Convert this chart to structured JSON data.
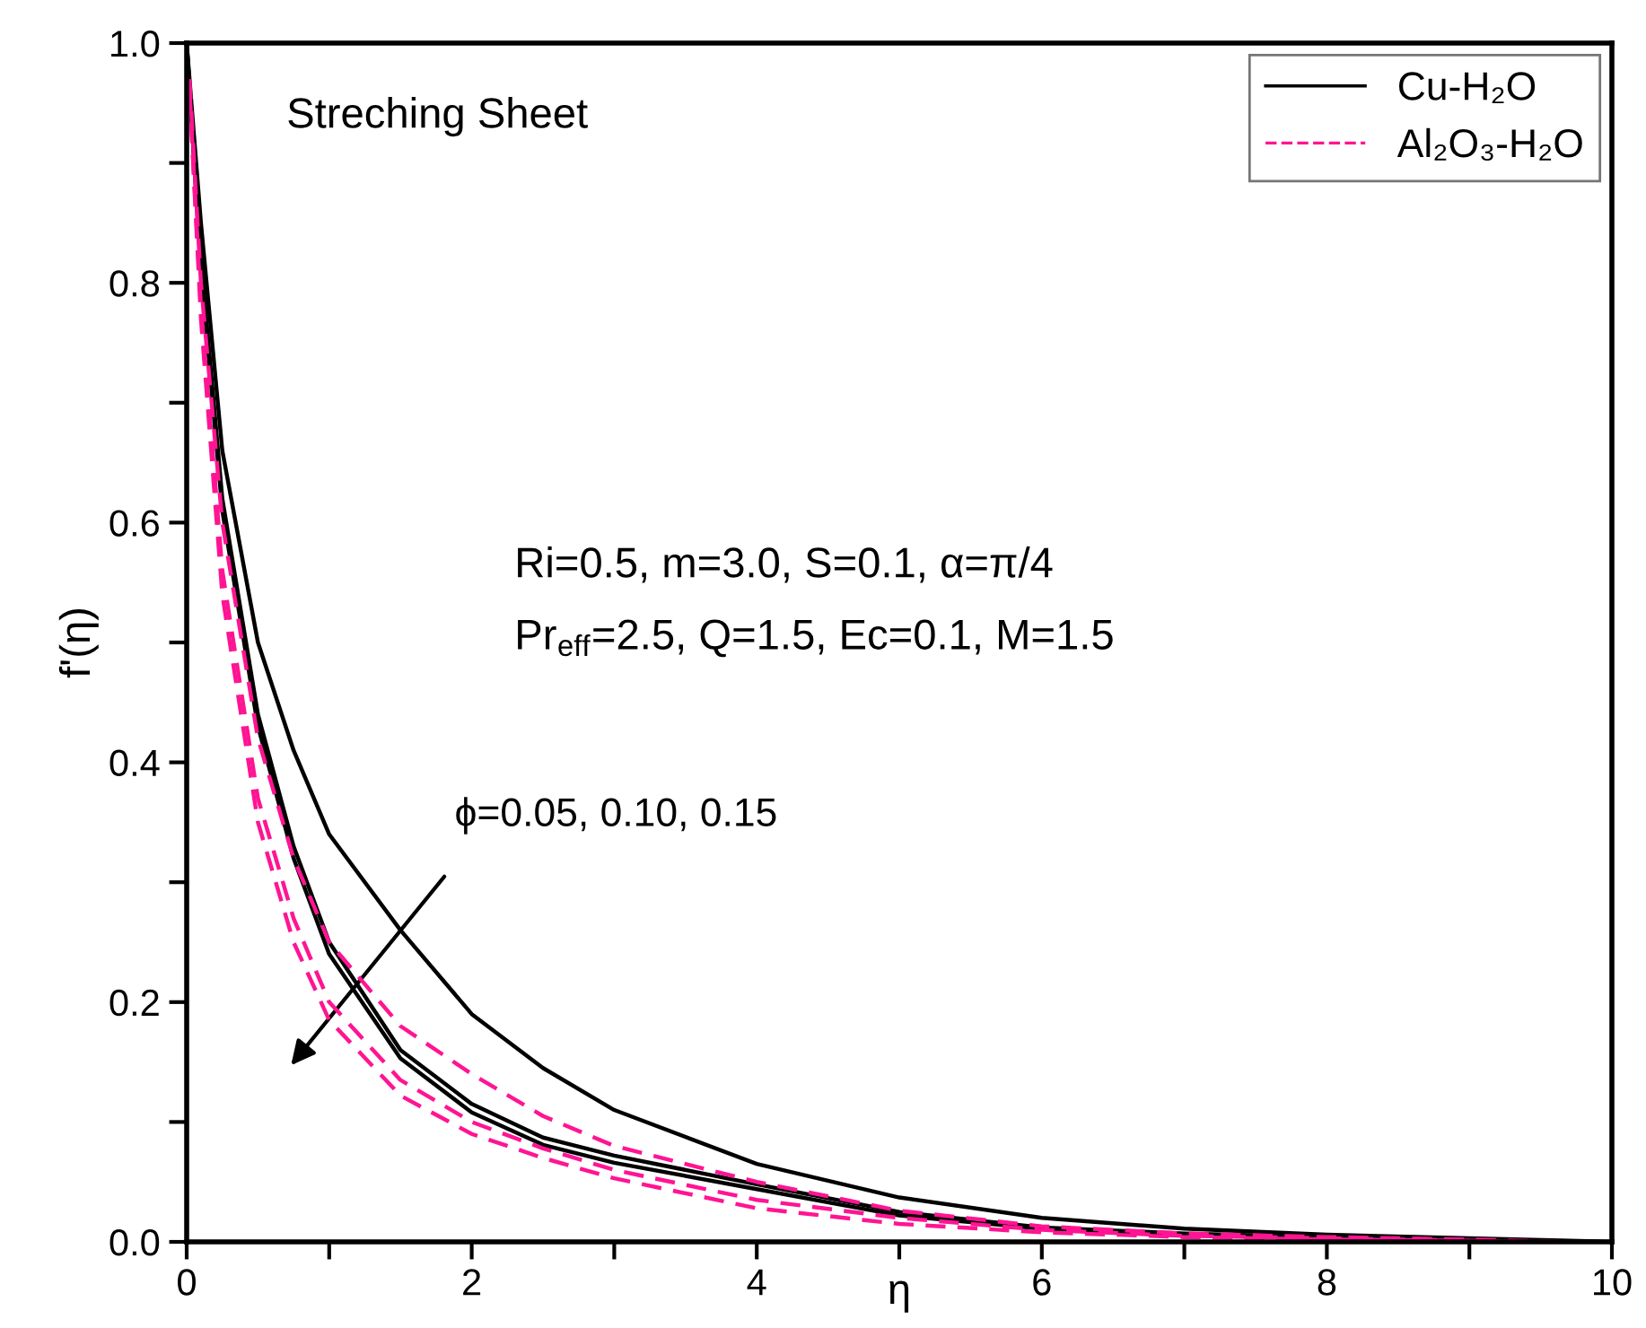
{
  "chart_data": {
    "type": "line",
    "xlabel": "η",
    "ylabel": "f'(η)",
    "xlim": [
      0,
      10
    ],
    "ylim": [
      0,
      1.0
    ],
    "xticks": [
      0,
      {
        "value": 1,
        "label": null
      },
      2,
      {
        "value": 3,
        "label": null
      },
      4,
      {
        "value": 5,
        "label": null
      },
      6,
      {
        "value": 7,
        "label": null
      },
      8,
      {
        "value": 9,
        "label": null
      },
      10
    ],
    "yticks": [
      {
        "value": 0,
        "label": "0.0"
      },
      {
        "value": 0.1,
        "label": null
      },
      0.2,
      {
        "value": 0.3,
        "label": null
      },
      0.4,
      {
        "value": 0.5,
        "label": null
      },
      0.6,
      {
        "value": 0.7,
        "label": null
      },
      0.8,
      {
        "value": 0.9,
        "label": null
      },
      {
        "value": 1.0,
        "label": "1.0"
      }
    ],
    "grid": false,
    "legend": "top right",
    "marker": "none",
    "x": [
      0,
      0.1,
      0.25,
      0.5,
      0.75,
      1,
      1.5,
      2,
      2.5,
      3,
      4,
      5,
      6,
      7,
      8,
      9,
      10
    ],
    "series": [
      {
        "name": "Cu-H₂O",
        "color": "#000000",
        "line_style": "solid",
        "values": [
          1,
          0.85,
          0.66,
          0.5,
          0.41,
          0.34,
          0.26,
          0.19,
          0.145,
          0.11,
          0.065,
          0.037,
          0.02,
          0.011,
          0.006,
          0.003,
          0
        ]
      },
      {
        "color": "#000000",
        "line_style": "solid",
        "x": [
          0,
          0.1,
          0.25,
          0.5,
          0.75,
          1,
          1.5,
          2,
          2.5,
          3,
          4,
          5,
          6,
          7,
          8,
          9,
          9.9
        ],
        "values": [
          1,
          0.82,
          0.62,
          0.44,
          0.33,
          0.25,
          0.16,
          0.115,
          0.087,
          0.072,
          0.048,
          0.025,
          0.012,
          0.007,
          0.004,
          0.002,
          0
        ]
      },
      {
        "color": "#000000",
        "line_style": "solid",
        "x": [
          0,
          0.1,
          0.25,
          0.5,
          0.75,
          1,
          1.5,
          2,
          2.5,
          3,
          4,
          5,
          6,
          7,
          8,
          9,
          9.8
        ],
        "values": [
          1,
          0.81,
          0.61,
          0.43,
          0.32,
          0.24,
          0.153,
          0.108,
          0.081,
          0.066,
          0.044,
          0.022,
          0.011,
          0.006,
          0.003,
          0.001,
          0
        ]
      },
      {
        "name": "Al₂O₃-H₂O",
        "color": "#ff1493",
        "line_style": "dashed",
        "x": [
          0.02,
          0.1,
          0.25,
          0.5,
          0.75,
          1,
          1.5,
          2,
          2.5,
          3,
          4,
          5,
          6,
          7,
          8,
          9,
          9.7
        ],
        "values": [
          0.97,
          0.8,
          0.6,
          0.42,
          0.32,
          0.25,
          0.18,
          0.14,
          0.105,
          0.08,
          0.05,
          0.026,
          0.013,
          0.007,
          0.004,
          0.002,
          0
        ]
      },
      {
        "color": "#ff1493",
        "line_style": "dashed",
        "x": [
          0.02,
          0.1,
          0.25,
          0.5,
          0.75,
          1,
          1.5,
          2,
          2.5,
          3,
          4,
          5,
          6,
          7,
          8,
          9,
          9.6
        ],
        "values": [
          0.96,
          0.78,
          0.56,
          0.37,
          0.27,
          0.2,
          0.135,
          0.1,
          0.078,
          0.06,
          0.035,
          0.02,
          0.01,
          0.005,
          0.003,
          0.001,
          0
        ]
      },
      {
        "color": "#ff1493",
        "line_style": "dashed",
        "x": [
          0.02,
          0.1,
          0.25,
          0.5,
          0.75,
          1,
          1.5,
          2,
          2.5,
          3,
          4,
          5,
          6,
          7,
          8,
          9,
          9.5
        ],
        "values": [
          0.96,
          0.77,
          0.54,
          0.35,
          0.25,
          0.185,
          0.122,
          0.09,
          0.07,
          0.053,
          0.028,
          0.015,
          0.008,
          0.004,
          0.002,
          0.001,
          0
        ]
      }
    ],
    "annotations": [
      "Streching Sheet",
      "Ri=0.5, m=3.0, S=0.1, α=π/4",
      "Pr$_{eff}$=2.5, Q=1.5, Ec=0.1, M=1.5",
      "ϕ=0.05, 0.10, 0.15"
    ]
  }
}
